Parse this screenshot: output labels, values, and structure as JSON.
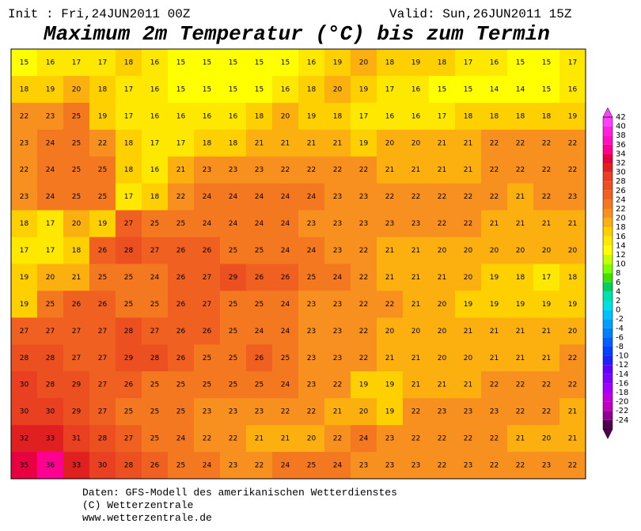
{
  "header": {
    "init": "Init : Fri,24JUN2011 00Z",
    "valid": "Valid: Sun,26JUN2011 15Z",
    "title": "Maximum 2m Temperatur (°C) bis zum Termin"
  },
  "map": {
    "grid": [
      [
        15,
        16,
        17,
        17,
        18,
        16,
        15,
        15,
        15,
        15,
        15,
        16,
        19,
        20,
        18,
        19,
        18,
        17,
        16,
        15,
        15,
        17
      ],
      [
        18,
        19,
        20,
        18,
        17,
        16,
        15,
        15,
        15,
        15,
        16,
        18,
        20,
        19,
        17,
        16,
        15,
        15,
        14,
        14,
        15,
        16
      ],
      [
        22,
        23,
        25,
        19,
        17,
        16,
        16,
        16,
        16,
        18,
        20,
        19,
        18,
        17,
        16,
        16,
        17,
        18,
        18,
        18,
        18,
        19
      ],
      [
        23,
        24,
        25,
        22,
        18,
        17,
        17,
        18,
        18,
        21,
        21,
        21,
        21,
        19,
        20,
        20,
        21,
        21,
        22,
        22,
        22,
        22
      ],
      [
        22,
        24,
        25,
        25,
        18,
        16,
        21,
        23,
        23,
        23,
        22,
        22,
        22,
        22,
        21,
        21,
        21,
        21,
        22,
        22,
        22,
        22
      ],
      [
        23,
        24,
        25,
        25,
        17,
        18,
        22,
        24,
        24,
        24,
        24,
        24,
        23,
        23,
        22,
        22,
        22,
        22,
        22,
        21,
        22,
        23
      ],
      [
        18,
        17,
        20,
        19,
        27,
        25,
        25,
        24,
        24,
        24,
        24,
        23,
        23,
        23,
        23,
        23,
        22,
        22,
        21,
        21,
        21,
        21
      ],
      [
        17,
        17,
        18,
        26,
        28,
        27,
        26,
        26,
        25,
        25,
        24,
        24,
        23,
        22,
        21,
        21,
        20,
        20,
        20,
        20,
        20,
        20
      ],
      [
        19,
        20,
        21,
        25,
        25,
        24,
        26,
        27,
        29,
        26,
        26,
        25,
        24,
        22,
        21,
        21,
        21,
        20,
        19,
        18,
        17,
        18
      ],
      [
        19,
        25,
        26,
        26,
        25,
        25,
        26,
        27,
        25,
        25,
        24,
        23,
        23,
        22,
        22,
        21,
        20,
        19,
        19,
        19,
        19,
        19
      ],
      [
        27,
        27,
        27,
        27,
        28,
        27,
        26,
        26,
        25,
        24,
        24,
        23,
        23,
        22,
        20,
        20,
        20,
        21,
        21,
        21,
        21,
        20
      ],
      [
        28,
        28,
        27,
        27,
        29,
        28,
        26,
        25,
        25,
        26,
        25,
        23,
        23,
        22,
        21,
        21,
        20,
        20,
        21,
        21,
        21,
        22
      ],
      [
        30,
        28,
        29,
        27,
        26,
        25,
        25,
        25,
        25,
        25,
        24,
        23,
        22,
        19,
        19,
        21,
        21,
        21,
        22,
        22,
        22,
        22
      ],
      [
        30,
        30,
        29,
        27,
        25,
        25,
        25,
        23,
        23,
        23,
        22,
        22,
        21,
        20,
        19,
        22,
        23,
        23,
        23,
        22,
        22,
        21
      ],
      [
        32,
        33,
        31,
        28,
        27,
        25,
        24,
        22,
        22,
        21,
        21,
        20,
        22,
        24,
        23,
        22,
        22,
        22,
        22,
        21,
        20,
        21
      ],
      [
        35,
        36,
        33,
        30,
        28,
        26,
        25,
        24,
        23,
        22,
        24,
        25,
        24,
        23,
        23,
        23,
        22,
        23,
        22,
        22,
        23,
        22
      ]
    ]
  },
  "colorbar": {
    "levels": [
      {
        "value": 42,
        "color": "#ff40ff"
      },
      {
        "value": 40,
        "color": "#ff20e0"
      },
      {
        "value": 38,
        "color": "#ff10c0"
      },
      {
        "value": 36,
        "color": "#ff0090"
      },
      {
        "value": 34,
        "color": "#e80040"
      },
      {
        "value": 32,
        "color": "#e02020"
      },
      {
        "value": 30,
        "color": "#e84020"
      },
      {
        "value": 28,
        "color": "#ec5020"
      },
      {
        "value": 26,
        "color": "#f06020"
      },
      {
        "value": 24,
        "color": "#f47820"
      },
      {
        "value": 22,
        "color": "#f89020"
      },
      {
        "value": 20,
        "color": "#fcb010"
      },
      {
        "value": 18,
        "color": "#ffd000"
      },
      {
        "value": 16,
        "color": "#ffe800"
      },
      {
        "value": 14,
        "color": "#ffff00"
      },
      {
        "value": 12,
        "color": "#c8ff00"
      },
      {
        "value": 10,
        "color": "#80ff00"
      },
      {
        "value": 8,
        "color": "#40e000"
      },
      {
        "value": 6,
        "color": "#00d060"
      },
      {
        "value": 4,
        "color": "#00e0b0"
      },
      {
        "value": 2,
        "color": "#00e0e0"
      },
      {
        "value": 0,
        "color": "#00c0ff"
      },
      {
        "value": -2,
        "color": "#00a0ff"
      },
      {
        "value": -4,
        "color": "#0080ff"
      },
      {
        "value": -6,
        "color": "#0060ff"
      },
      {
        "value": -8,
        "color": "#0040ff"
      },
      {
        "value": -10,
        "color": "#2020ff"
      },
      {
        "value": -12,
        "color": "#6000ff"
      },
      {
        "value": -14,
        "color": "#8000ff"
      },
      {
        "value": -16,
        "color": "#a000ff"
      },
      {
        "value": -18,
        "color": "#c000e0"
      },
      {
        "value": -20,
        "color": "#c000c0"
      },
      {
        "value": -22,
        "color": "#900090"
      },
      {
        "value": -24,
        "color": "#500050"
      }
    ]
  },
  "footer": {
    "lines": [
      "Daten: GFS-Modell des amerikanischen Wetterdienstes",
      "(C) Wetterzentrale",
      "www.wetterzentrale.de"
    ]
  }
}
